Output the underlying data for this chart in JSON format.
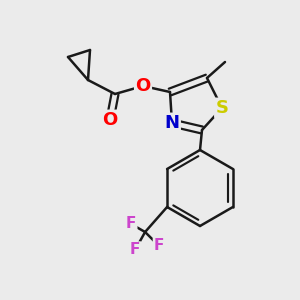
{
  "bg_color": "#ebebeb",
  "bond_color": "#1a1a1a",
  "bond_width": 1.8,
  "atom_colors": {
    "O": "#ff0000",
    "N": "#0000cc",
    "S": "#cccc00",
    "F": "#cc44cc",
    "C": "#1a1a1a"
  },
  "font_size_atom": 12,
  "fig_width": 3.0,
  "fig_height": 3.0,
  "dpi": 100
}
